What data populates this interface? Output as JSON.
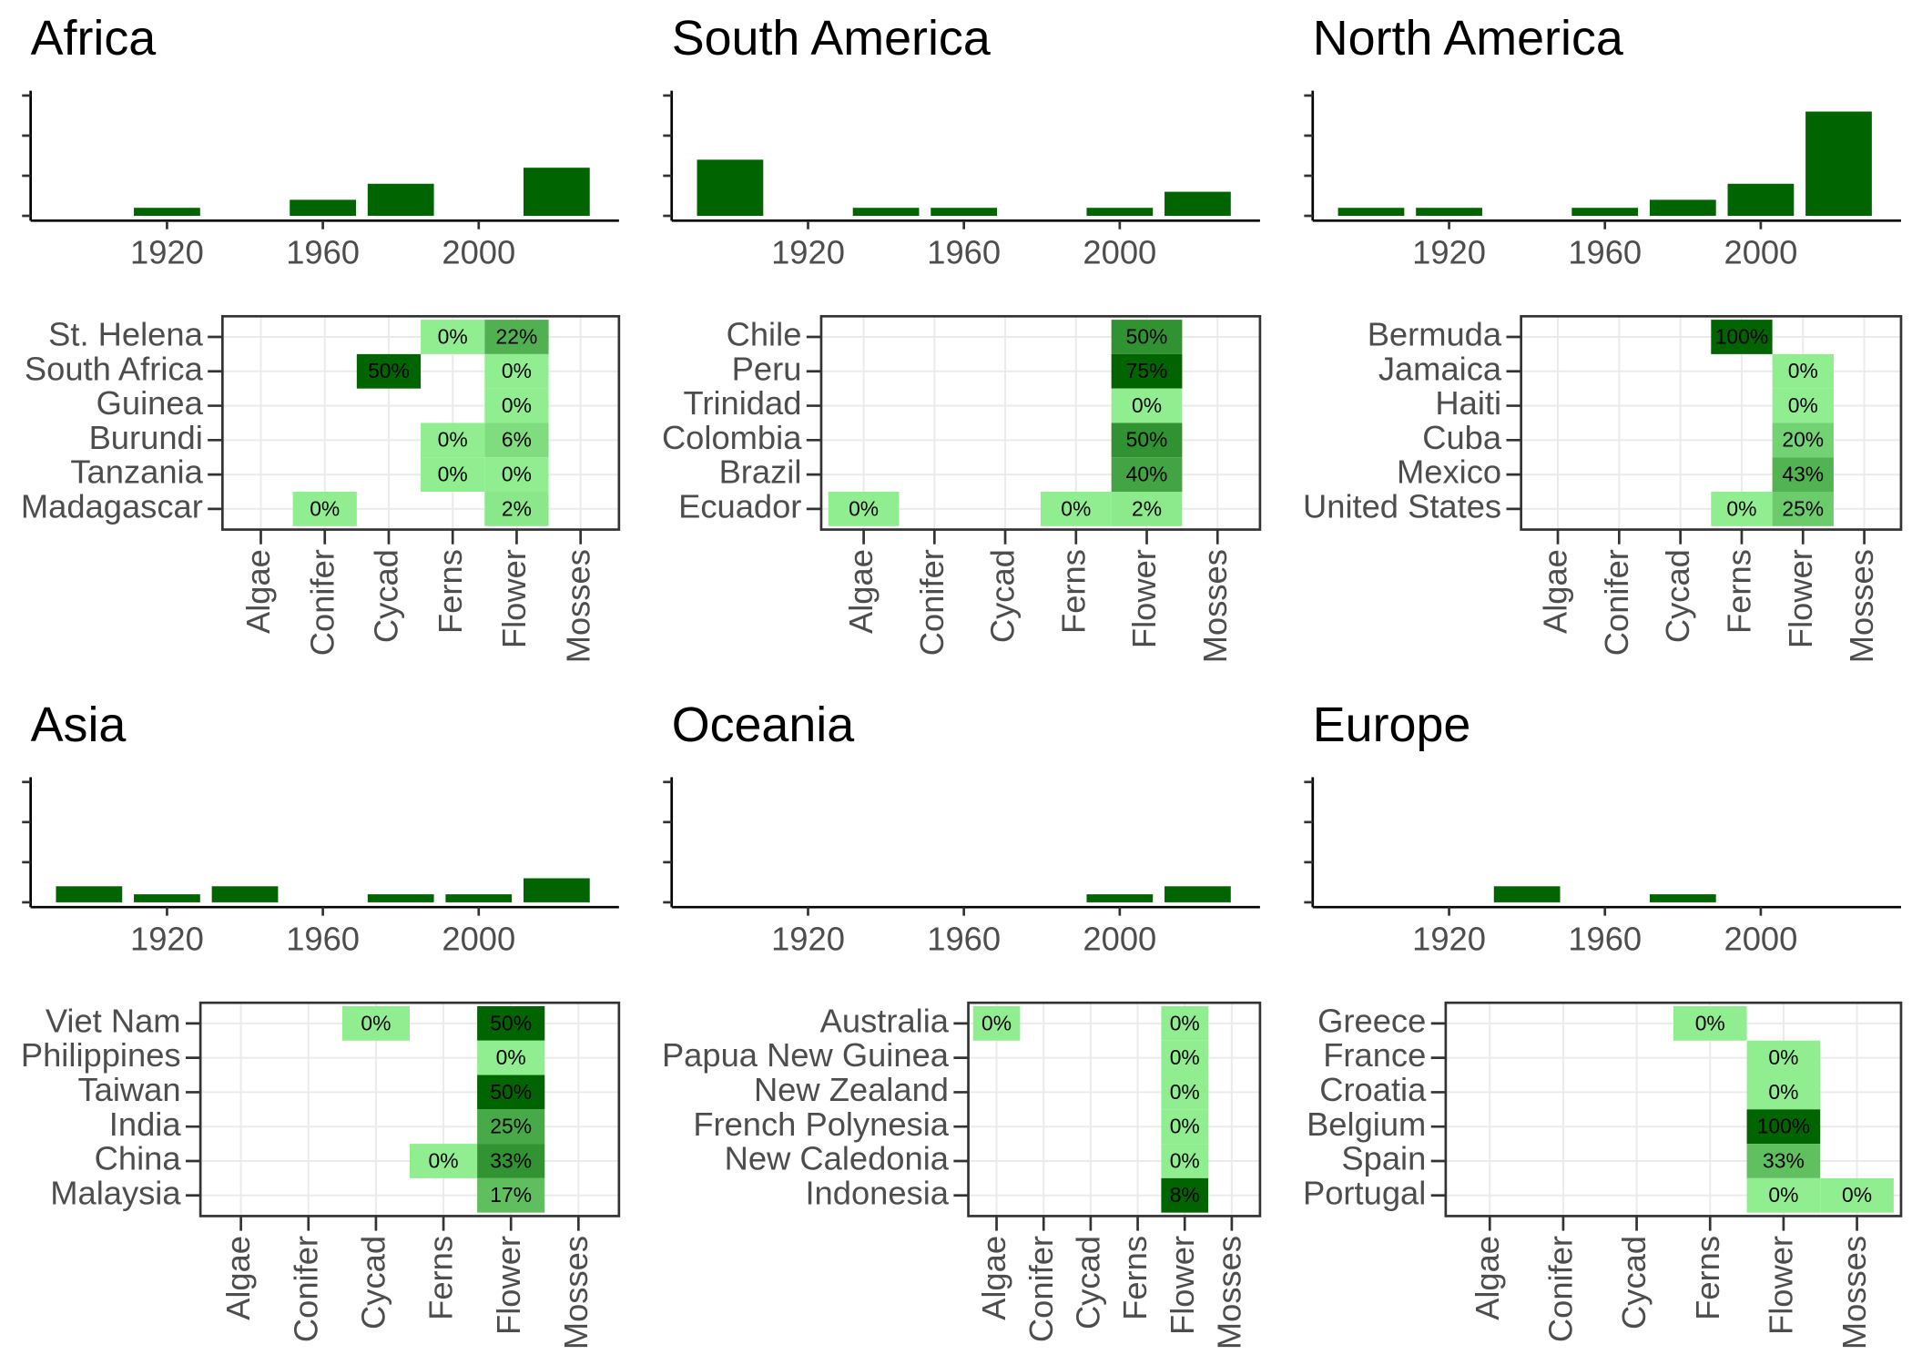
{
  "chart_data": [
    {
      "type": "bar",
      "title": "Africa",
      "x": [
        1920,
        1960,
        1980,
        2020
      ],
      "values": [
        1,
        2,
        4,
        6
      ],
      "color": "#006400",
      "xlim": [
        1885,
        2036
      ],
      "ylim": [
        -0.6,
        15.6
      ],
      "xticks": [
        1920,
        1960,
        2000
      ],
      "yticks": [
        0,
        5,
        10,
        15
      ]
    },
    {
      "type": "heatmap",
      "x_categories": [
        "Algae",
        "Conifer",
        "Cycad",
        "Ferns",
        "Flower",
        "Mosses"
      ],
      "y_categories": [
        "St. Helena",
        "South Africa",
        "Guinea",
        "Burundi",
        "Tanzania",
        "Madagascar"
      ],
      "color_low": "#90ee90",
      "color_high": "#006400",
      "grid": true,
      "cells": [
        {
          "x": "Ferns",
          "y": "St. Helena",
          "value": 0,
          "value_label": "0%"
        },
        {
          "x": "Flower",
          "y": "St. Helena",
          "value": 22,
          "value_label": "22%"
        },
        {
          "x": "Cycad",
          "y": "South Africa",
          "value": 50,
          "value_label": "50%"
        },
        {
          "x": "Flower",
          "y": "South Africa",
          "value": 0,
          "value_label": "0%"
        },
        {
          "x": "Flower",
          "y": "Guinea",
          "value": 0,
          "value_label": "0%"
        },
        {
          "x": "Ferns",
          "y": "Burundi",
          "value": 0,
          "value_label": "0%"
        },
        {
          "x": "Flower",
          "y": "Burundi",
          "value": 6,
          "value_label": "6%"
        },
        {
          "x": "Ferns",
          "y": "Tanzania",
          "value": 0,
          "value_label": "0%"
        },
        {
          "x": "Flower",
          "y": "Tanzania",
          "value": 0,
          "value_label": "0%"
        },
        {
          "x": "Conifer",
          "y": "Madagascar",
          "value": 0,
          "value_label": "0%"
        },
        {
          "x": "Flower",
          "y": "Madagascar",
          "value": 2,
          "value_label": "2%"
        }
      ]
    },
    {
      "type": "bar",
      "title": "South America",
      "x": [
        1900,
        1940,
        1960,
        2000,
        2020
      ],
      "values": [
        7,
        1,
        1,
        1,
        3
      ],
      "color": "#006400",
      "xlim": [
        1885,
        2036
      ],
      "ylim": [
        -0.6,
        15.6
      ],
      "xticks": [
        1920,
        1960,
        2000
      ],
      "yticks": [
        0,
        5,
        10,
        15
      ]
    },
    {
      "type": "heatmap",
      "x_categories": [
        "Algae",
        "Conifer",
        "Cycad",
        "Ferns",
        "Flower",
        "Mosses"
      ],
      "y_categories": [
        "Chile",
        "Peru",
        "Trinidad",
        "Colombia",
        "Brazil",
        "Ecuador"
      ],
      "color_low": "#90ee90",
      "color_high": "#006400",
      "grid": true,
      "cells": [
        {
          "x": "Flower",
          "y": "Chile",
          "value": 50,
          "value_label": "50%"
        },
        {
          "x": "Flower",
          "y": "Peru",
          "value": 75,
          "value_label": "75%"
        },
        {
          "x": "Flower",
          "y": "Trinidad",
          "value": 0,
          "value_label": "0%"
        },
        {
          "x": "Flower",
          "y": "Colombia",
          "value": 50,
          "value_label": "50%"
        },
        {
          "x": "Flower",
          "y": "Brazil",
          "value": 40,
          "value_label": "40%"
        },
        {
          "x": "Algae",
          "y": "Ecuador",
          "value": 0,
          "value_label": "0%"
        },
        {
          "x": "Ferns",
          "y": "Ecuador",
          "value": 0,
          "value_label": "0%"
        },
        {
          "x": "Flower",
          "y": "Ecuador",
          "value": 2,
          "value_label": "2%"
        }
      ]
    },
    {
      "type": "bar",
      "title": "North America",
      "x": [
        1900,
        1920,
        1960,
        1980,
        2000,
        2020
      ],
      "values": [
        1,
        1,
        1,
        2,
        4,
        13
      ],
      "color": "#006400",
      "xlim": [
        1885,
        2036
      ],
      "ylim": [
        -0.6,
        15.6
      ],
      "xticks": [
        1920,
        1960,
        2000
      ],
      "yticks": [
        0,
        5,
        10,
        15
      ]
    },
    {
      "type": "heatmap",
      "x_categories": [
        "Algae",
        "Conifer",
        "Cycad",
        "Ferns",
        "Flower",
        "Mosses"
      ],
      "y_categories": [
        "Bermuda",
        "Jamaica",
        "Haiti",
        "Cuba",
        "Mexico",
        "United States"
      ],
      "color_low": "#90ee90",
      "color_high": "#006400",
      "grid": true,
      "cells": [
        {
          "x": "Ferns",
          "y": "Bermuda",
          "value": 100,
          "value_label": "100%"
        },
        {
          "x": "Flower",
          "y": "Jamaica",
          "value": 0,
          "value_label": "0%"
        },
        {
          "x": "Flower",
          "y": "Haiti",
          "value": 0,
          "value_label": "0%"
        },
        {
          "x": "Flower",
          "y": "Cuba",
          "value": 20,
          "value_label": "20%"
        },
        {
          "x": "Flower",
          "y": "Mexico",
          "value": 43,
          "value_label": "43%"
        },
        {
          "x": "Ferns",
          "y": "United States",
          "value": 0,
          "value_label": "0%"
        },
        {
          "x": "Flower",
          "y": "United States",
          "value": 25,
          "value_label": "25%"
        }
      ]
    },
    {
      "type": "bar",
      "title": "Asia",
      "x": [
        1900,
        1920,
        1940,
        1980,
        2000,
        2020
      ],
      "values": [
        2,
        1,
        2,
        1,
        1,
        3
      ],
      "color": "#006400",
      "xlim": [
        1885,
        2036
      ],
      "ylim": [
        -0.6,
        15.6
      ],
      "xticks": [
        1920,
        1960,
        2000
      ],
      "yticks": [
        0,
        5,
        10,
        15
      ]
    },
    {
      "type": "heatmap",
      "x_categories": [
        "Algae",
        "Conifer",
        "Cycad",
        "Ferns",
        "Flower",
        "Mosses"
      ],
      "y_categories": [
        "Viet Nam",
        "Philippines",
        "Taiwan",
        "India",
        "China",
        "Malaysia"
      ],
      "color_low": "#90ee90",
      "color_high": "#006400",
      "grid": true,
      "cells": [
        {
          "x": "Cycad",
          "y": "Viet Nam",
          "value": 0,
          "value_label": "0%"
        },
        {
          "x": "Flower",
          "y": "Viet Nam",
          "value": 50,
          "value_label": "50%"
        },
        {
          "x": "Flower",
          "y": "Philippines",
          "value": 0,
          "value_label": "0%"
        },
        {
          "x": "Flower",
          "y": "Taiwan",
          "value": 50,
          "value_label": "50%"
        },
        {
          "x": "Flower",
          "y": "India",
          "value": 25,
          "value_label": "25%"
        },
        {
          "x": "Ferns",
          "y": "China",
          "value": 0,
          "value_label": "0%"
        },
        {
          "x": "Flower",
          "y": "China",
          "value": 33,
          "value_label": "33%"
        },
        {
          "x": "Flower",
          "y": "Malaysia",
          "value": 17,
          "value_label": "17%"
        }
      ]
    },
    {
      "type": "bar",
      "title": "Oceania",
      "x": [
        2000,
        2020
      ],
      "values": [
        1,
        2
      ],
      "color": "#006400",
      "xlim": [
        1885,
        2036
      ],
      "ylim": [
        -0.6,
        15.6
      ],
      "xticks": [
        1920,
        1960,
        2000
      ],
      "yticks": [
        0,
        5,
        10,
        15
      ]
    },
    {
      "type": "heatmap",
      "x_categories": [
        "Algae",
        "Conifer",
        "Cycad",
        "Ferns",
        "Flower",
        "Mosses"
      ],
      "y_categories": [
        "Australia",
        "Papua New Guinea",
        "New Zealand",
        "French Polynesia",
        "New Caledonia",
        "Indonesia"
      ],
      "color_low": "#90ee90",
      "color_high": "#006400",
      "grid": true,
      "cells": [
        {
          "x": "Algae",
          "y": "Australia",
          "value": 0,
          "value_label": "0%"
        },
        {
          "x": "Flower",
          "y": "Australia",
          "value": 0,
          "value_label": "0%"
        },
        {
          "x": "Flower",
          "y": "Papua New Guinea",
          "value": 0,
          "value_label": "0%"
        },
        {
          "x": "Flower",
          "y": "New Zealand",
          "value": 0,
          "value_label": "0%"
        },
        {
          "x": "Flower",
          "y": "French Polynesia",
          "value": 0,
          "value_label": "0%"
        },
        {
          "x": "Flower",
          "y": "New Caledonia",
          "value": 0,
          "value_label": "0%"
        },
        {
          "x": "Flower",
          "y": "Indonesia",
          "value": 8,
          "value_label": "8%"
        }
      ]
    },
    {
      "type": "bar",
      "title": "Europe",
      "x": [
        1940,
        1980
      ],
      "values": [
        2,
        1
      ],
      "color": "#006400",
      "xlim": [
        1885,
        2036
      ],
      "ylim": [
        -0.6,
        15.6
      ],
      "xticks": [
        1920,
        1960,
        2000
      ],
      "yticks": [
        0,
        5,
        10,
        15
      ]
    },
    {
      "type": "heatmap",
      "x_categories": [
        "Algae",
        "Conifer",
        "Cycad",
        "Ferns",
        "Flower",
        "Mosses"
      ],
      "y_categories": [
        "Greece",
        "France",
        "Croatia",
        "Belgium",
        "Spain",
        "Portugal"
      ],
      "color_low": "#90ee90",
      "color_high": "#006400",
      "grid": true,
      "cells": [
        {
          "x": "Ferns",
          "y": "Greece",
          "value": 0,
          "value_label": "0%"
        },
        {
          "x": "Flower",
          "y": "France",
          "value": 0,
          "value_label": "0%"
        },
        {
          "x": "Flower",
          "y": "Croatia",
          "value": 0,
          "value_label": "0%"
        },
        {
          "x": "Flower",
          "y": "Belgium",
          "value": 100,
          "value_label": "100%"
        },
        {
          "x": "Flower",
          "y": "Spain",
          "value": 33,
          "value_label": "33%"
        },
        {
          "x": "Flower",
          "y": "Portugal",
          "value": 0,
          "value_label": "0%"
        },
        {
          "x": "Mosses",
          "y": "Portugal",
          "value": 0,
          "value_label": "0%"
        }
      ]
    }
  ]
}
